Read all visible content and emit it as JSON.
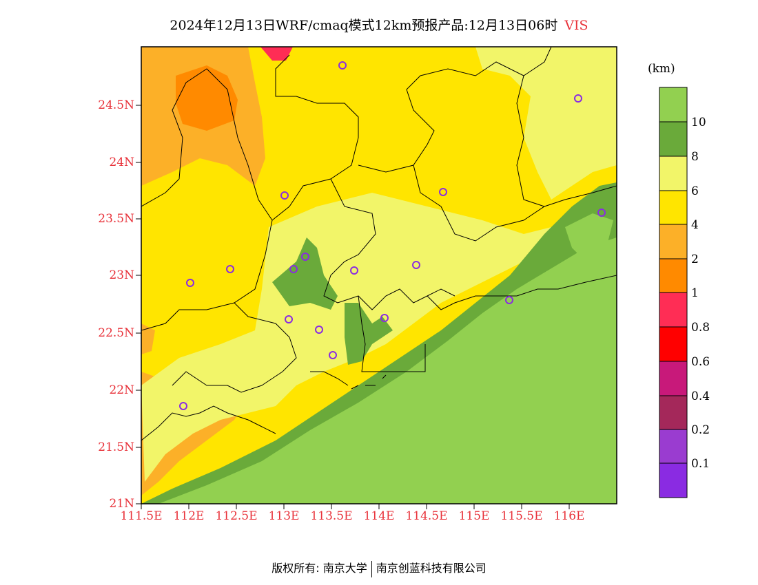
{
  "title": {
    "text": "2024年12月13日WRF/cmaq模式12km预报产品:12月13日06时",
    "variable": "VIS"
  },
  "axes": {
    "y_ticks": [
      "24.5N",
      "24N",
      "23.5N",
      "23N",
      "22.5N",
      "22N",
      "21.5N",
      "21N"
    ],
    "x_ticks": [
      "111.5E",
      "112E",
      "112.5E",
      "113E",
      "113.5E",
      "114E",
      "114.5E",
      "115E",
      "115.5E",
      "116E"
    ]
  },
  "colorbar": {
    "unit": "(km)",
    "labels": [
      "10",
      "8",
      "6",
      "4",
      "2",
      "1",
      "0.8",
      "0.6",
      "0.4",
      "0.2",
      "0.1"
    ],
    "colors": [
      "#92d050",
      "#6aaa3a",
      "#f2f569",
      "#ffe500",
      "#fcb028",
      "#ff8a00",
      "#ff2d55",
      "#ff0000",
      "#c8197a",
      "#a4285a",
      "#9a3cd0",
      "#8a2be2"
    ]
  },
  "footer": {
    "left": "版权所有: 南京大学",
    "right": "南京创蓝科技有限公司"
  }
}
